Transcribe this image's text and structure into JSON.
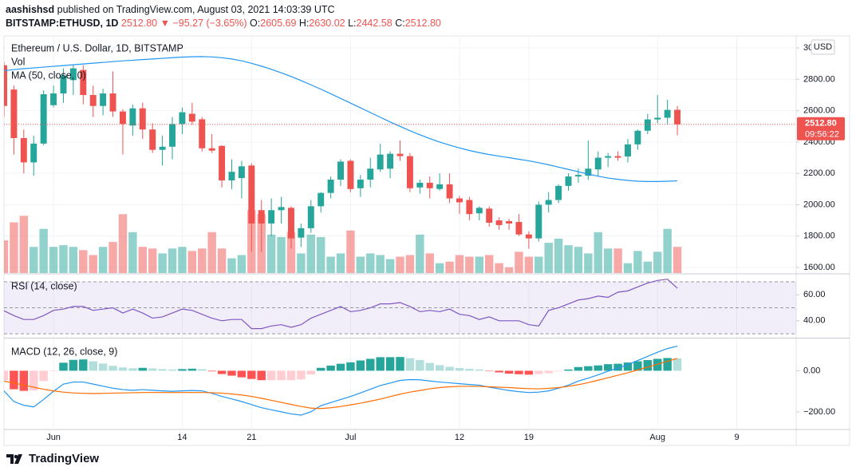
{
  "header": {
    "publisher": "aashishsd",
    "line1": "published on TradingView.com, August 03, 2021 14:03:39 UTC",
    "symbol": "BITSTAMP:ETHUSD, 1D",
    "last": "2512.80",
    "change": "▼ −95.27 (−3.65%)",
    "ohlc": [
      {
        "label": "O:",
        "value": "2605.69"
      },
      {
        "label": "H:",
        "value": "2630.02"
      },
      {
        "label": "L:",
        "value": "2442.58"
      },
      {
        "label": "C:",
        "value": "2512.80"
      }
    ]
  },
  "footer": {
    "brand": "TradingView"
  },
  "chart_data": [
    {
      "type": "candlestick",
      "title": "Ethereum / U.S. Dollar, 1D, BITSTAMP",
      "currency": "USD",
      "price_label": "2512.80",
      "countdown": "09:56:22",
      "up_color": "#26a69a",
      "down_color": "#ef5350",
      "x": [
        "2021-05-27",
        "2021-05-28",
        "2021-05-29",
        "2021-05-30",
        "2021-05-31",
        "2021-06-01",
        "2021-06-02",
        "2021-06-03",
        "2021-06-04",
        "2021-06-05",
        "2021-06-06",
        "2021-06-07",
        "2021-06-08",
        "2021-06-09",
        "2021-06-10",
        "2021-06-11",
        "2021-06-12",
        "2021-06-13",
        "2021-06-14",
        "2021-06-15",
        "2021-06-16",
        "2021-06-17",
        "2021-06-18",
        "2021-06-19",
        "2021-06-20",
        "2021-06-21",
        "2021-06-22",
        "2021-06-23",
        "2021-06-24",
        "2021-06-25",
        "2021-06-26",
        "2021-06-27",
        "2021-06-28",
        "2021-06-29",
        "2021-06-30",
        "2021-07-01",
        "2021-07-02",
        "2021-07-03",
        "2021-07-04",
        "2021-07-05",
        "2021-07-06",
        "2021-07-07",
        "2021-07-08",
        "2021-07-09",
        "2021-07-10",
        "2021-07-11",
        "2021-07-12",
        "2021-07-13",
        "2021-07-14",
        "2021-07-15",
        "2021-07-16",
        "2021-07-17",
        "2021-07-18",
        "2021-07-19",
        "2021-07-20",
        "2021-07-21",
        "2021-07-22",
        "2021-07-23",
        "2021-07-24",
        "2021-07-25",
        "2021-07-26",
        "2021-07-27",
        "2021-07-28",
        "2021-07-29",
        "2021-07-30",
        "2021-07-31",
        "2021-08-01",
        "2021-08-02",
        "2021-08-03"
      ],
      "open": [
        2890,
        2735,
        2425,
        2270,
        2390,
        2635,
        2710,
        2795,
        2860,
        2700,
        2630,
        2710,
        2595,
        2505,
        2615,
        2480,
        2350,
        2370,
        2515,
        2580,
        2545,
        2360,
        2375,
        2155,
        2170,
        2250,
        1965,
        1880,
        1965,
        1980,
        1790,
        1850,
        1990,
        2075,
        2160,
        2280,
        2105,
        2160,
        2225,
        2230,
        2325,
        2310,
        2110,
        2140,
        2100,
        2130,
        2040,
        2030,
        1945,
        1975,
        1900,
        1895,
        1890,
        1810,
        1785,
        2000,
        2030,
        2120,
        2180,
        2185,
        2225,
        2300,
        2310,
        2308,
        2385,
        2472,
        2544,
        2555,
        2605.69
      ],
      "high": [
        2910,
        2760,
        2480,
        2440,
        2730,
        2760,
        2870,
        2890,
        2890,
        2760,
        2740,
        2850,
        2610,
        2640,
        2650,
        2520,
        2440,
        2560,
        2620,
        2650,
        2560,
        2450,
        2380,
        2290,
        2280,
        2265,
        2030,
        2040,
        2050,
        1990,
        1880,
        2030,
        2080,
        2180,
        2290,
        2290,
        2190,
        2300,
        2390,
        2340,
        2410,
        2330,
        2160,
        2180,
        2200,
        2200,
        2055,
        2050,
        1990,
        1990,
        1920,
        1910,
        1940,
        1830,
        2020,
        2080,
        2130,
        2200,
        2230,
        2410,
        2340,
        2330,
        2340,
        2420,
        2480,
        2580,
        2700,
        2670,
        2630.02
      ],
      "low": [
        2560,
        2320,
        2200,
        2185,
        2380,
        2620,
        2650,
        2700,
        2640,
        2560,
        2570,
        2560,
        2320,
        2440,
        2420,
        2330,
        2250,
        2290,
        2450,
        2510,
        2340,
        2330,
        2110,
        2100,
        2040,
        1700,
        1700,
        1800,
        1880,
        1720,
        1730,
        1820,
        1950,
        2040,
        2120,
        2080,
        2050,
        2110,
        2210,
        2170,
        2280,
        2080,
        2070,
        2040,
        2090,
        2010,
        1940,
        1900,
        1900,
        1860,
        1840,
        1840,
        1800,
        1720,
        1765,
        1950,
        2010,
        2090,
        2140,
        2160,
        2180,
        2240,
        2280,
        2270,
        2350,
        2450,
        2520,
        2510,
        2442.58
      ],
      "close": [
        2630,
        2425,
        2270,
        2390,
        2705,
        2710,
        2825,
        2870,
        2700,
        2630,
        2710,
        2595,
        2515,
        2615,
        2480,
        2350,
        2370,
        2515,
        2590,
        2530,
        2360,
        2345,
        2155,
        2210,
        2245,
        1880,
        1880,
        1965,
        1985,
        1785,
        1850,
        1990,
        2075,
        2160,
        2275,
        2100,
        2160,
        2230,
        2320,
        2325,
        2310,
        2105,
        2140,
        2105,
        2130,
        2040,
        2015,
        1940,
        1980,
        1885,
        1870,
        1880,
        1810,
        1785,
        2000,
        2030,
        2120,
        2180,
        2190,
        2230,
        2300,
        2310,
        2300,
        2385,
        2472,
        2544,
        2555,
        2605,
        2512.8
      ],
      "volume": {
        "name": "Vol",
        "ylim": [
          0,
          290
        ],
        "values": [
          40,
          62,
          70,
          32,
          54,
          32,
          34,
          32,
          28,
          22,
          32,
          38,
          72,
          50,
          32,
          30,
          24,
          30,
          32,
          27,
          30,
          50,
          30,
          18,
          22,
          77,
          72,
          47,
          44,
          50,
          24,
          47,
          44,
          20,
          24,
          52,
          20,
          24,
          22,
          17,
          20,
          22,
          47,
          24,
          12,
          14,
          22,
          20,
          20,
          22,
          12,
          7,
          26,
          20,
          20,
          37,
          42,
          34,
          32,
          24,
          50,
          30,
          30,
          12,
          27,
          14,
          26,
          54,
          32
        ]
      },
      "series": [
        {
          "name": "MA (50, close, 0)",
          "color": "#2196f3",
          "values": [
            2855,
            2862,
            2868,
            2873,
            2878,
            2883,
            2888,
            2893,
            2898,
            2903,
            2908,
            2913,
            2918,
            2922,
            2926,
            2930,
            2934,
            2938,
            2942,
            2944,
            2945,
            2943,
            2938,
            2930,
            2918,
            2902,
            2884,
            2864,
            2842,
            2818,
            2792,
            2765,
            2737,
            2708,
            2678,
            2648,
            2618,
            2588,
            2558,
            2528,
            2500,
            2472,
            2446,
            2422,
            2400,
            2380,
            2362,
            2346,
            2332,
            2320,
            2310,
            2300,
            2290,
            2280,
            2268,
            2255,
            2240,
            2225,
            2210,
            2195,
            2182,
            2170,
            2162,
            2155,
            2150,
            2148,
            2148,
            2150,
            2152
          ]
        }
      ],
      "xlim": [
        "2021-05-27",
        "2021-08-15"
      ],
      "xticks": [
        {
          "value": "2021-06-01",
          "label": "Jun"
        },
        {
          "value": "2021-06-14",
          "label": "14"
        },
        {
          "value": "2021-06-21",
          "label": "21"
        },
        {
          "value": "2021-07-01",
          "label": "Jul"
        },
        {
          "value": "2021-07-12",
          "label": "12"
        },
        {
          "value": "2021-07-19",
          "label": "19"
        },
        {
          "value": "2021-08-01",
          "label": "Aug"
        },
        {
          "value": "2021-08-09",
          "label": "9"
        }
      ],
      "ylim": [
        1564,
        3077
      ],
      "yticks": [
        {
          "value": 1600,
          "label": "1600.00"
        },
        {
          "value": 1800,
          "label": "1800.00"
        },
        {
          "value": 2000,
          "label": "2000.00"
        },
        {
          "value": 2200,
          "label": "2200.00"
        },
        {
          "value": 2400,
          "label": "2400.00"
        },
        {
          "value": 2600,
          "label": "2600.00"
        },
        {
          "value": 2800,
          "label": "2800.00"
        },
        {
          "value": 3000,
          "label": "3000.00"
        }
      ],
      "grid": true
    },
    {
      "type": "rsi",
      "title": "RSI (14, close)",
      "band": [
        30,
        70
      ],
      "levels": [
        70,
        50,
        30
      ],
      "band_color": "rgba(126,87,194,0.1)",
      "series": [
        {
          "color": "#7e57c2",
          "values": [
            47.7,
            44,
            41,
            41,
            44,
            48,
            49,
            51,
            51,
            48,
            49,
            50,
            46,
            49,
            46,
            42,
            43,
            46,
            49,
            48,
            45,
            42,
            40,
            41,
            41,
            34,
            34,
            36,
            37,
            35,
            37,
            42,
            45,
            48,
            51,
            47,
            48,
            50,
            53,
            53,
            54,
            51,
            47,
            48,
            47,
            49,
            45,
            44,
            41,
            43,
            40,
            40,
            40,
            37,
            36,
            48,
            50,
            53,
            56,
            57,
            59,
            58,
            62,
            63,
            66,
            69,
            71,
            72,
            65
          ]
        }
      ],
      "ylim": [
        27,
        75.5
      ],
      "yticks": [
        {
          "value": 60,
          "label": "60.00"
        },
        {
          "value": 40,
          "label": "40.00"
        }
      ]
    },
    {
      "type": "macd",
      "title": "MACD (12, 26, close, 9)",
      "series": [
        {
          "color": "#2196f3",
          "values": [
            -98,
            -150,
            -168,
            -176,
            -140,
            -100,
            -65,
            -55,
            -55,
            -65,
            -75,
            -85,
            -92,
            -95,
            -92,
            -95,
            -98,
            -100,
            -98,
            -96,
            -98,
            -110,
            -125,
            -137,
            -150,
            -165,
            -180,
            -190,
            -200,
            -210,
            -216,
            -200,
            -170,
            -155,
            -140,
            -125,
            -108,
            -90,
            -72,
            -60,
            -47,
            -43,
            -44,
            -50,
            -55,
            -59,
            -63,
            -67,
            -70,
            -80,
            -88,
            -96,
            -102,
            -106,
            -104,
            -98,
            -85,
            -70,
            -50,
            -36,
            -20,
            -2,
            12,
            30,
            50,
            70,
            90,
            108,
            120
          ]
        },
        {
          "color": "#ff6d00",
          "values": [
            -51,
            -60,
            -70,
            -80,
            -90,
            -98,
            -104,
            -108,
            -110,
            -111,
            -110,
            -109,
            -108,
            -107,
            -106,
            -106,
            -106,
            -106,
            -106,
            -106,
            -106,
            -107,
            -109,
            -113,
            -118,
            -125,
            -134,
            -144,
            -154,
            -164,
            -174,
            -182,
            -184,
            -180,
            -174,
            -166,
            -158,
            -148,
            -138,
            -126,
            -114,
            -104,
            -96,
            -88,
            -82,
            -78,
            -76,
            -76,
            -76,
            -78,
            -80,
            -82,
            -85,
            -87,
            -88,
            -86,
            -82,
            -76,
            -68,
            -58,
            -46,
            -34,
            -22,
            -10,
            4,
            18,
            32,
            46,
            60
          ]
        }
      ],
      "histogram": {
        "colors": [
          "#26a69a",
          "#b2dfdb",
          "#ff5252",
          "#ffcdd2"
        ],
        "values": [
          -47,
          -90,
          -98,
          -96,
          -50,
          -2,
          39,
          53,
          55,
          46,
          35,
          24,
          16,
          12,
          14,
          11,
          8,
          6,
          8,
          10,
          8,
          -3,
          -16,
          -24,
          -32,
          -40,
          -46,
          -46,
          -46,
          -46,
          -42,
          -18,
          14,
          25,
          34,
          41,
          50,
          58,
          66,
          66,
          67,
          61,
          52,
          38,
          27,
          19,
          13,
          9,
          6,
          -2,
          -8,
          -14,
          -17,
          -19,
          -16,
          -12,
          -3,
          6,
          18,
          22,
          26,
          32,
          34,
          40,
          46,
          52,
          58,
          62,
          60
        ]
      },
      "ylim": [
        -286,
        157
      ],
      "yticks": [
        {
          "value": 0,
          "label": "0.00"
        },
        {
          "value": -200,
          "label": "−200.00"
        }
      ]
    }
  ]
}
